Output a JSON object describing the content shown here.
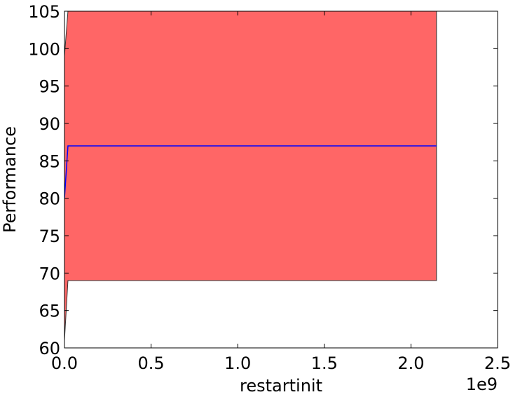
{
  "chart_data": {
    "type": "line",
    "xlabel": "restartinit",
    "ylabel": "Performance",
    "x_offset_label": "1e9",
    "xlim": [
      0,
      2500000000
    ],
    "ylim": [
      60,
      105
    ],
    "x_ticks": [
      0,
      500000000,
      1000000000,
      1500000000,
      2000000000,
      2500000000
    ],
    "x_tick_labels": [
      "0.0",
      "0.5",
      "1.0",
      "1.5",
      "2.0",
      "2.5"
    ],
    "y_ticks": [
      60,
      65,
      70,
      75,
      80,
      85,
      90,
      95,
      100,
      105
    ],
    "y_tick_labels": [
      "60",
      "65",
      "70",
      "75",
      "80",
      "85",
      "90",
      "95",
      "100",
      "105"
    ],
    "grid": false,
    "series": [
      {
        "x": [
          0,
          20000000,
          2147483647
        ],
        "y": [
          80,
          87,
          87
        ],
        "color": "#0000ff"
      }
    ],
    "band": {
      "x": [
        0,
        20000000,
        2147483647
      ],
      "lower": [
        61,
        69,
        69
      ],
      "upper": [
        99,
        105,
        105
      ],
      "color": "#ff6666"
    }
  }
}
